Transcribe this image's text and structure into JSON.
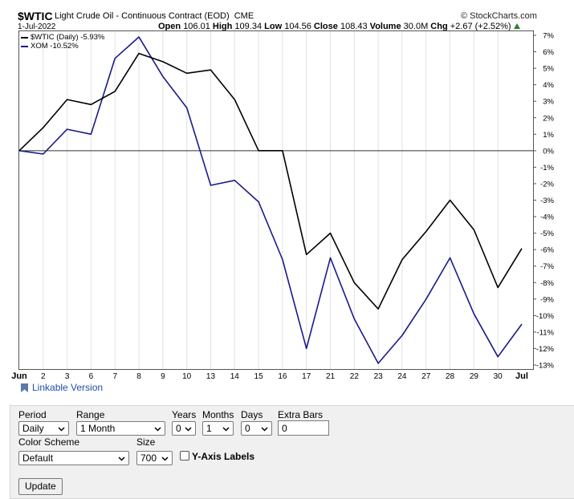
{
  "header": {
    "symbol": "$WTIC",
    "description": "Light Crude Oil - Continuous Contract (EOD)",
    "exchange": "CME",
    "credit": "© StockCharts.com",
    "date": "1-Jul-2022",
    "open_label": "Open",
    "open": "106.01",
    "high_label": "High",
    "high": "109.34",
    "low_label": "Low",
    "low": "104.56",
    "close_label": "Close",
    "close": "108.43",
    "volume_label": "Volume",
    "volume": "30.0M",
    "chg_label": "Chg",
    "chg": "+2.67 (+2.52%)"
  },
  "legend": [
    {
      "label": "$WTIC (Daily) -5.93%",
      "color": "#000000"
    },
    {
      "label": "XOM -10.52%",
      "color": "#1a1a8c"
    }
  ],
  "chart_data": {
    "type": "line",
    "categories": [
      "Jun",
      "2",
      "3",
      "6",
      "7",
      "8",
      "9",
      "10",
      "13",
      "14",
      "15",
      "16",
      "17",
      "21",
      "22",
      "23",
      "24",
      "27",
      "28",
      "29",
      "30",
      "Jul"
    ],
    "series": [
      {
        "name": "$WTIC (Daily)",
        "color": "#000000",
        "values": [
          0,
          1.4,
          3.1,
          2.8,
          3.6,
          5.9,
          5.4,
          4.7,
          4.9,
          3.1,
          0.0,
          0.0,
          -6.3,
          -5.0,
          -8.0,
          -9.6,
          -6.6,
          -4.9,
          -3.0,
          -4.8,
          -8.3,
          -5.93
        ]
      },
      {
        "name": "XOM",
        "color": "#1a1a8c",
        "values": [
          0,
          -0.2,
          1.3,
          1.0,
          5.6,
          6.9,
          4.5,
          2.6,
          -2.1,
          -1.8,
          -3.1,
          -6.6,
          -12.0,
          -6.5,
          -10.2,
          -12.9,
          -11.2,
          -9.0,
          -6.5,
          -9.9,
          -12.5,
          -10.52
        ]
      }
    ],
    "y_ticks": [
      "7%",
      "6%",
      "5%",
      "4%",
      "3%",
      "2%",
      "1%",
      "0%",
      "-1%",
      "-2%",
      "-3%",
      "-4%",
      "-5%",
      "-6%",
      "-7%",
      "-8%",
      "-9%",
      "-10%",
      "-11%",
      "-12%",
      "-13%"
    ],
    "ylim": [
      -13,
      7
    ],
    "y_axis_side": "right",
    "grid": "vertical",
    "zero_line": true
  },
  "footer": {
    "linkable_label": "Linkable Version"
  },
  "controls": {
    "period_label": "Period",
    "period_value": "Daily",
    "range_label": "Range",
    "range_value": "1 Month",
    "years_label": "Years",
    "years_value": "0",
    "months_label": "Months",
    "months_value": "1",
    "days_label": "Days",
    "days_value": "0",
    "extra_bars_label": "Extra Bars",
    "extra_bars_value": "0",
    "color_scheme_label": "Color Scheme",
    "color_scheme_value": "Default",
    "size_label": "Size",
    "size_value": "700",
    "yaxis_labels_label": "Y-Axis Labels",
    "update_label": "Update"
  },
  "icons": [
    "bookmark-icon",
    "chevron-down-icon",
    "triangle-up-icon"
  ]
}
